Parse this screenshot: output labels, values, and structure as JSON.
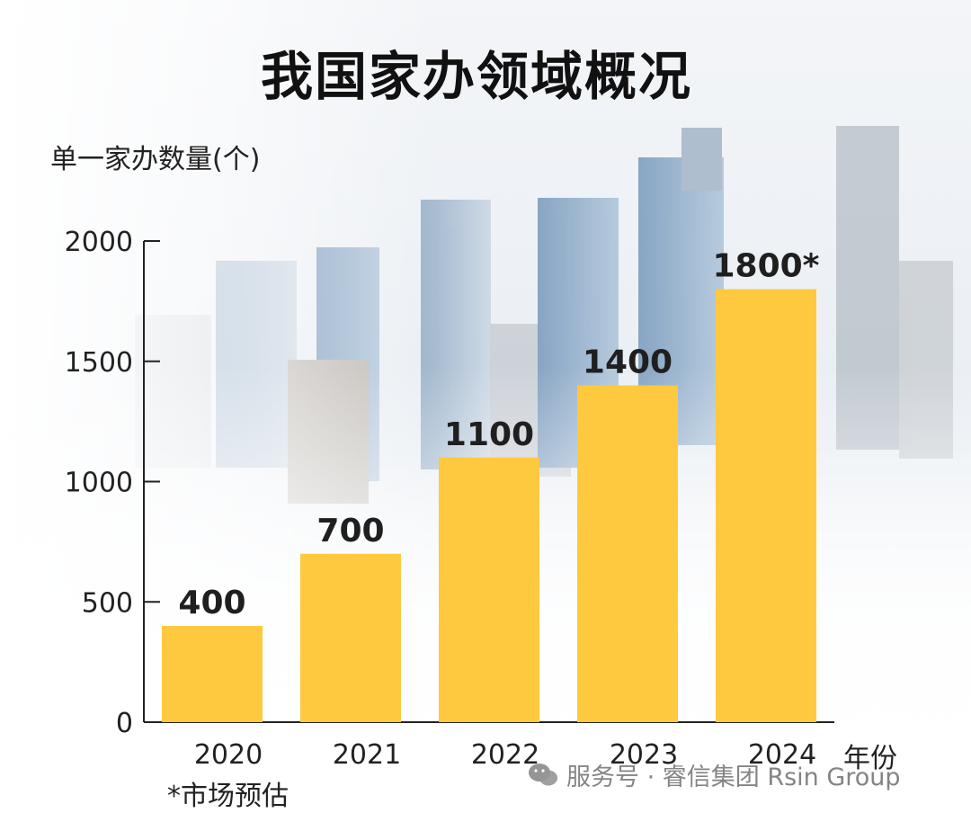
{
  "title": "我国家办领域概况",
  "footnote": "*市场预估",
  "watermark": "服务号 · 睿信集团 Rsin Group",
  "colors": {
    "bar": "#FFC93F",
    "axis": "#222222",
    "text": "#222222"
  },
  "chart_data": {
    "type": "bar",
    "title": "我国家办领域概况",
    "ylabel": "单一家办数量(个)",
    "xlabel": "年份",
    "categories": [
      "2020",
      "2021",
      "2022",
      "2023",
      "2024"
    ],
    "values": [
      400,
      700,
      1100,
      1400,
      1800
    ],
    "value_labels": [
      "400",
      "700",
      "1100",
      "1400",
      "1800*"
    ],
    "ylim": [
      0,
      2000
    ],
    "yticks": [
      0,
      500,
      1000,
      1500,
      2000
    ],
    "grid": false,
    "legend": "none"
  }
}
